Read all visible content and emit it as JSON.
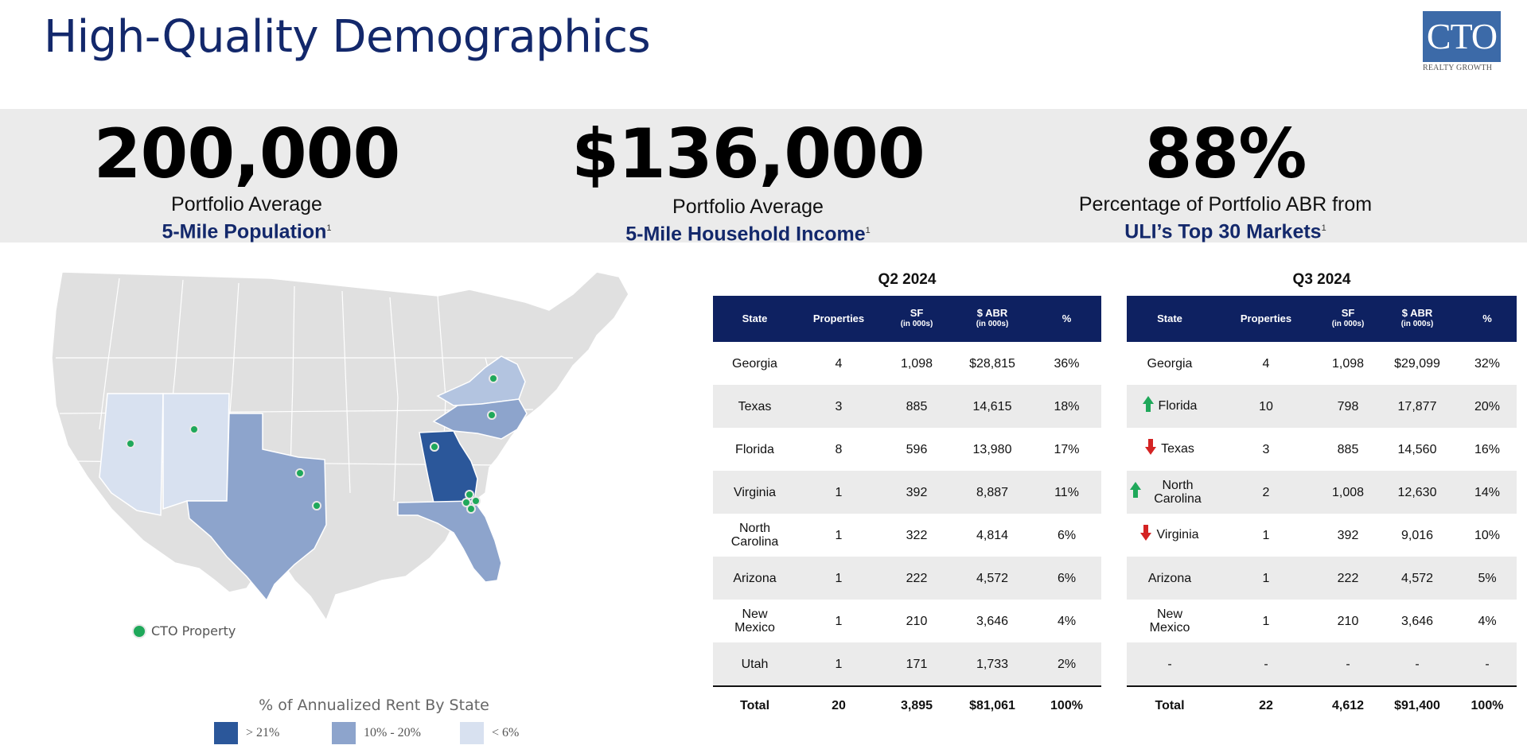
{
  "title": "High-Quality Demographics",
  "logo": {
    "text": "CTO",
    "sub": "REALTY GROWTH"
  },
  "stats": [
    {
      "value": "200,000",
      "line1": "Portfolio Average",
      "line2": "5-Mile Population",
      "note": "1"
    },
    {
      "value": "$136,000",
      "line1": "Portfolio Average",
      "line2": "5-Mile Household Income",
      "note": "1"
    },
    {
      "value": "88%",
      "line1": "Percentage of Portfolio ABR from",
      "line2": "ULI’s Top 30 Markets",
      "note": "1"
    }
  ],
  "map": {
    "legend_title": "% of Annualized Rent By State",
    "legend": [
      {
        "label": "> 21%",
        "color": "#2b579a"
      },
      {
        "label": "10% - 20%",
        "color": "#8da4cc"
      },
      {
        "label": "< 6%",
        "color": "#d8e1f0"
      }
    ],
    "property_label": "CTO Property",
    "colors": {
      "base": "#e0e0e0",
      "border": "#ffffff",
      "dot": "#1fa85a"
    }
  },
  "q2": {
    "period": "Q2 2024",
    "headers": {
      "state": "State",
      "properties": "Properties",
      "sf": "SF",
      "sf_sub": "(in 000s)",
      "abr": "$ ABR",
      "abr_sub": "(in 000s)",
      "pct": "%"
    },
    "rows": [
      {
        "state": "Georgia",
        "properties": "4",
        "sf": "1,098",
        "abr": "$28,815",
        "pct": "36%"
      },
      {
        "state": "Texas",
        "properties": "3",
        "sf": "885",
        "abr": "14,615",
        "pct": "18%"
      },
      {
        "state": "Florida",
        "properties": "8",
        "sf": "596",
        "abr": "13,980",
        "pct": "17%"
      },
      {
        "state": "Virginia",
        "properties": "1",
        "sf": "392",
        "abr": "8,887",
        "pct": "11%"
      },
      {
        "state": "North Carolina",
        "properties": "1",
        "sf": "322",
        "abr": "4,814",
        "pct": "6%"
      },
      {
        "state": "Arizona",
        "properties": "1",
        "sf": "222",
        "abr": "4,572",
        "pct": "6%"
      },
      {
        "state": "New Mexico",
        "properties": "1",
        "sf": "210",
        "abr": "3,646",
        "pct": "4%"
      },
      {
        "state": "Utah",
        "properties": "1",
        "sf": "171",
        "abr": "1,733",
        "pct": "2%"
      }
    ],
    "total": {
      "state": "Total",
      "properties": "20",
      "sf": "3,895",
      "abr": "$81,061",
      "pct": "100%"
    }
  },
  "q3": {
    "period": "Q3 2024",
    "headers": {
      "state": "State",
      "properties": "Properties",
      "sf": "SF",
      "sf_sub": "(in 000s)",
      "abr": "$ ABR",
      "abr_sub": "(in 000s)",
      "pct": "%"
    },
    "rows": [
      {
        "state": "Georgia",
        "trend": "",
        "properties": "4",
        "sf": "1,098",
        "abr": "$29,099",
        "pct": "32%"
      },
      {
        "state": "Florida",
        "trend": "up",
        "properties": "10",
        "sf": "798",
        "abr": "17,877",
        "pct": "20%"
      },
      {
        "state": "Texas",
        "trend": "down",
        "properties": "3",
        "sf": "885",
        "abr": "14,560",
        "pct": "16%"
      },
      {
        "state": "North Carolina",
        "trend": "up",
        "properties": "2",
        "sf": "1,008",
        "abr": "12,630",
        "pct": "14%"
      },
      {
        "state": "Virginia",
        "trend": "down",
        "properties": "1",
        "sf": "392",
        "abr": "9,016",
        "pct": "10%"
      },
      {
        "state": "Arizona",
        "trend": "",
        "properties": "1",
        "sf": "222",
        "abr": "4,572",
        "pct": "5%"
      },
      {
        "state": "New Mexico",
        "trend": "",
        "properties": "1",
        "sf": "210",
        "abr": "3,646",
        "pct": "4%"
      },
      {
        "state": "-",
        "trend": "",
        "properties": "-",
        "sf": "-",
        "abr": "-",
        "pct": "-"
      }
    ],
    "total": {
      "state": "Total",
      "properties": "22",
      "sf": "4,612",
      "abr": "$91,400",
      "pct": "100%"
    }
  }
}
